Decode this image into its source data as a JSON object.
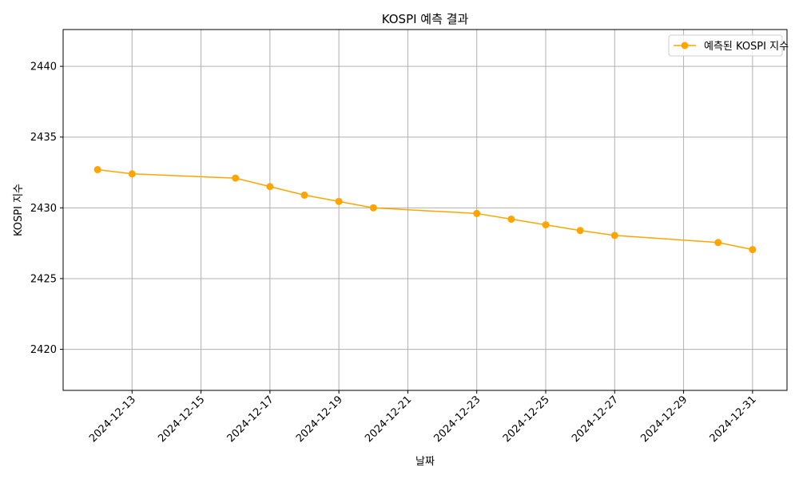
{
  "chart_data": {
    "type": "line",
    "title": "KOSPI 예측 결과",
    "xlabel": "날짜",
    "ylabel": "KOSPI 지수",
    "grid": true,
    "legend_position": "top-right",
    "colors": {
      "series": "#ffa500",
      "grid": "#b0b0b0",
      "axis": "#000000"
    },
    "x_ticks": [
      "2024-12-13",
      "2024-12-15",
      "2024-12-17",
      "2024-12-19",
      "2024-12-21",
      "2024-12-23",
      "2024-12-25",
      "2024-12-27",
      "2024-12-29",
      "2024-12-31"
    ],
    "y_ticks": [
      2420,
      2425,
      2430,
      2435,
      2440
    ],
    "xlim": [
      "2024-12-11",
      "2025-01-01"
    ],
    "ylim": [
      2417.1,
      2442.6
    ],
    "series": [
      {
        "name": "예측된 KOSPI 지수",
        "marker": "circle",
        "x": [
          "2024-12-12",
          "2024-12-13",
          "2024-12-16",
          "2024-12-17",
          "2024-12-18",
          "2024-12-19",
          "2024-12-20",
          "2024-12-23",
          "2024-12-24",
          "2024-12-25",
          "2024-12-26",
          "2024-12-27",
          "2024-12-30",
          "2024-12-31"
        ],
        "values": [
          2432.7,
          2432.4,
          2432.1,
          2431.5,
          2430.9,
          2430.45,
          2430.0,
          2429.6,
          2429.2,
          2428.8,
          2428.4,
          2428.05,
          2427.55,
          2427.05
        ]
      }
    ]
  }
}
